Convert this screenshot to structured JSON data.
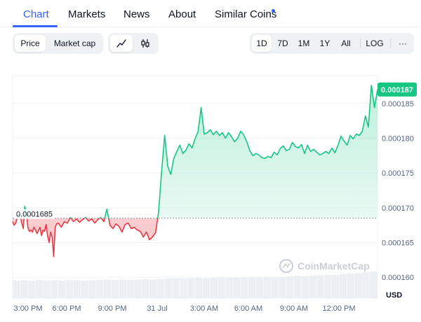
{
  "tabs": [
    {
      "label": "Chart",
      "active": true
    },
    {
      "label": "Markets",
      "active": false
    },
    {
      "label": "News",
      "active": false
    },
    {
      "label": "About",
      "active": false
    },
    {
      "label": "Similar Coins",
      "active": false,
      "has_dot": true
    }
  ],
  "toolbar": {
    "view_toggle": [
      {
        "label": "Price",
        "active": true
      },
      {
        "label": "Market cap",
        "active": false
      }
    ],
    "chart_type_icons": [
      "line-chart-icon",
      "candlestick-icon"
    ],
    "ranges": [
      {
        "label": "1D",
        "active": true
      },
      {
        "label": "7D",
        "active": false
      },
      {
        "label": "1M",
        "active": false
      },
      {
        "label": "1Y",
        "active": false
      },
      {
        "label": "All",
        "active": false
      }
    ],
    "log_label": "LOG",
    "more_label": "···"
  },
  "colors": {
    "accent": "#3861fb",
    "up": "#16c784",
    "down": "#ea3943",
    "grid": "#eff2f5",
    "axis_text": "#58667e"
  },
  "chart_data": {
    "type": "line",
    "title": "",
    "xlabel": "",
    "ylabel": "USD",
    "currency_label": "USD",
    "ylim": [
      0.000157,
      0.000189
    ],
    "y_ticks": [
      "0.000160",
      "0.000165",
      "0.000170",
      "0.000175",
      "0.000180",
      "0.000185"
    ],
    "x_ticks": [
      "3:00 PM",
      "6:00 PM",
      "9:00 PM",
      "31 Jul",
      "3:00 AM",
      "6:00 AM",
      "9:00 AM",
      "12:00 PM"
    ],
    "baseline": 0.0001685,
    "baseline_label": "0.0001685",
    "current_price": 0.000187,
    "current_price_label": "0.000187",
    "watermark": "CoinMarketCap",
    "series": [
      {
        "x": [
          0,
          0.1,
          0.2,
          0.3,
          0.4,
          0.5,
          0.6,
          0.7,
          0.8,
          0.9,
          1.0,
          1.1,
          1.2,
          1.3,
          1.4,
          1.5,
          1.6,
          1.7,
          1.8,
          1.9,
          2.0,
          2.1,
          2.2,
          2.3,
          2.4,
          2.5,
          2.6,
          2.7,
          2.8,
          2.9,
          3.0,
          3.2,
          3.4,
          3.6,
          3.8,
          4.0,
          4.2,
          4.4,
          4.6,
          4.8,
          5.0,
          5.2,
          5.4,
          5.6,
          5.8,
          6.0,
          6.2,
          6.4,
          6.6,
          6.8,
          7.0,
          7.2,
          7.4,
          7.6,
          7.8,
          8.0,
          8.2,
          8.4,
          8.6,
          8.8,
          9.0,
          9.2,
          9.4,
          9.6,
          9.8,
          10.0,
          10.2,
          10.4,
          10.6,
          10.8,
          11.0,
          11.2,
          11.4,
          11.6,
          11.8,
          12.0,
          12.2,
          12.4,
          12.6,
          12.8,
          13.0,
          13.2,
          13.4,
          13.6,
          13.8,
          14.0,
          14.2,
          14.4,
          14.6,
          14.8,
          15.0,
          15.2,
          15.4,
          15.6,
          15.8,
          16.0,
          16.2,
          16.4,
          16.6,
          16.8,
          17.0,
          17.2,
          17.4,
          17.6,
          17.8,
          18.0,
          18.2,
          18.4,
          18.6,
          18.8,
          19.0,
          19.2,
          19.4,
          19.6,
          19.8,
          20.0,
          20.2,
          20.4,
          20.6,
          20.8,
          21.0,
          21.2,
          21.4,
          21.6,
          21.8,
          22.0,
          22.2,
          22.4,
          22.6,
          22.8,
          23.0,
          23.2,
          23.4,
          23.6,
          23.8,
          24.0
        ],
        "values": [
          0.000168,
          0.0001675,
          0.0001678,
          0.0001685,
          0.000169,
          0.0001688,
          0.0001678,
          0.000167,
          0.0001702,
          0.0001694,
          0.0001672,
          0.0001666,
          0.0001668,
          0.0001665,
          0.0001672,
          0.0001668,
          0.0001663,
          0.0001667,
          0.0001672,
          0.000166,
          0.0001668,
          0.0001666,
          0.0001676,
          0.000166,
          0.000165,
          0.0001665,
          0.0001658,
          0.000163,
          0.0001672,
          0.0001677,
          0.0001678,
          0.0001672,
          0.000168,
          0.0001678,
          0.0001686,
          0.000168,
          0.0001684,
          0.0001679,
          0.0001683,
          0.0001686,
          0.0001681,
          0.0001684,
          0.0001678,
          0.0001683,
          0.0001686,
          0.000168,
          0.0001698,
          0.0001675,
          0.000167,
          0.0001677,
          0.0001673,
          0.0001665,
          0.0001676,
          0.0001678,
          0.000167,
          0.0001672,
          0.0001668,
          0.0001666,
          0.0001658,
          0.0001665,
          0.0001654,
          0.0001658,
          0.0001664,
          0.0001694,
          0.0001752,
          0.0001804,
          0.000176,
          0.0001748,
          0.0001771,
          0.0001781,
          0.000179,
          0.0001778,
          0.0001783,
          0.0001792,
          0.0001786,
          0.0001799,
          0.000181,
          0.0001844,
          0.0001806,
          0.0001808,
          0.0001812,
          0.0001805,
          0.000181,
          0.0001804,
          0.0001808,
          0.00018,
          0.0001808,
          0.0001802,
          0.0001795,
          0.00018,
          0.000181,
          0.0001805,
          0.0001795,
          0.0001782,
          0.0001775,
          0.0001778,
          0.0001776,
          0.0001772,
          0.0001771,
          0.0001774,
          0.0001772,
          0.000178,
          0.0001776,
          0.0001785,
          0.0001789,
          0.0001782,
          0.0001784,
          0.0001794,
          0.0001788,
          0.0001786,
          0.0001791,
          0.0001778,
          0.000179,
          0.0001781,
          0.0001784,
          0.000178,
          0.0001776,
          0.0001778,
          0.0001781,
          0.0001778,
          0.0001786,
          0.0001779,
          0.000179,
          0.0001803,
          0.0001796,
          0.000179,
          0.0001804,
          0.0001799,
          0.0001806,
          0.0001804,
          0.000181,
          0.0001832,
          0.0001816,
          0.0001876,
          0.0001844,
          0.000187
        ]
      }
    ],
    "volume": [
      0.55,
      0.56,
      0.54,
      0.57,
      0.55,
      0.56,
      0.55,
      0.57,
      0.56,
      0.55,
      0.56,
      0.57,
      0.58,
      0.57,
      0.58,
      0.57,
      0.58,
      0.59,
      0.58,
      0.6,
      0.61,
      0.62,
      0.61,
      0.62,
      0.63,
      0.62,
      0.63,
      0.64,
      0.63,
      0.64,
      0.65,
      0.66,
      0.66,
      0.67,
      0.66,
      0.67,
      0.68,
      0.69,
      0.68,
      0.7,
      0.71,
      0.72,
      0.73,
      0.75,
      0.76,
      0.78,
      0.8,
      0.83
    ]
  }
}
